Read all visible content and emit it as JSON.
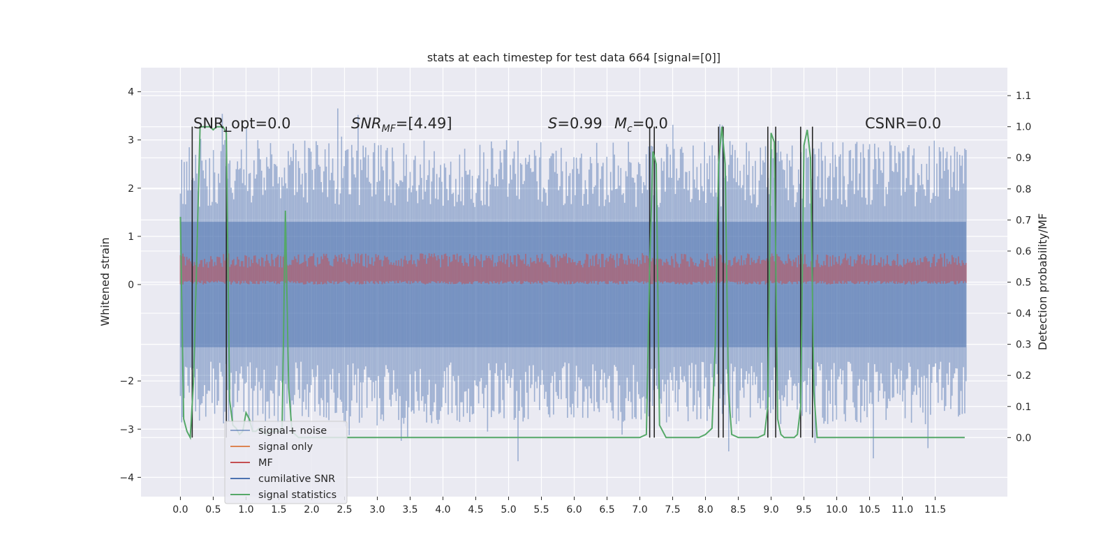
{
  "chart_data": {
    "type": "line",
    "title": "stats at each timestep for test data 664 [signal=[0]]",
    "xlabel": "",
    "ylabel": "Whitened strain",
    "ylabel_right": "Detection probability/MF",
    "xlim": [
      -0.6,
      12.6
    ],
    "ylim": [
      -4.4,
      4.5
    ],
    "ylim_right": [
      -0.19,
      1.19
    ],
    "x_ticks": [
      "0.0",
      "0.5",
      "1.0",
      "1.5",
      "2.0",
      "2.5",
      "3.0",
      "3.5",
      "4.0",
      "4.5",
      "5.0",
      "5.5",
      "6.0",
      "6.5",
      "7.0",
      "7.5",
      "8.0",
      "8.5",
      "9.0",
      "9.5",
      "10.0",
      "10.5",
      "11.0",
      "11.5"
    ],
    "y_ticks": [
      "4",
      "3",
      "2",
      "1",
      "0",
      "−2",
      "−3",
      "−4"
    ],
    "y_ticks_right": [
      "1.1",
      "1.0",
      "0.9",
      "0.8",
      "0.7",
      "0.6",
      "0.5",
      "0.4",
      "0.3",
      "0.2",
      "0.1",
      "0.0"
    ],
    "grid": true,
    "legend_position": "lower-left",
    "annotations": {
      "snr_opt": "SNR_opt=0.0",
      "snr_mf_main": "SNR",
      "snr_mf_sub": "MF",
      "snr_mf_value": "=[4.49]",
      "s_main": "S",
      "s_value": "=0.99",
      "mc_main": "M",
      "mc_sub": "c",
      "mc_value": "=0.0",
      "csnr": "CSNR=0.0"
    },
    "series": [
      {
        "name": "signal+ noise",
        "color": "#4c72b0",
        "style": "dense noise band, approx range -3.2 to 3.3 with spikes to 4.1 and -4.0",
        "range": [
          -3.2,
          3.3
        ]
      },
      {
        "name": "signal only",
        "color": "#dd8452",
        "values": []
      },
      {
        "name": "MF",
        "color": "#c44e52",
        "style": "dense band, approx range 0.0 to 0.6",
        "range": [
          0.0,
          0.6
        ]
      },
      {
        "name": "cumilative SNR",
        "color": "#4c72b0",
        "values": []
      },
      {
        "name": "signal statistics",
        "color": "#55a868",
        "axis": "right",
        "x": [
          0.0,
          0.05,
          0.1,
          0.15,
          0.2,
          0.25,
          0.3,
          0.35,
          0.4,
          0.45,
          0.5,
          0.55,
          0.6,
          0.65,
          0.7,
          0.75,
          0.8,
          0.85,
          0.9,
          0.95,
          1.0,
          1.05,
          1.1,
          1.15,
          1.2,
          1.25,
          1.3,
          1.35,
          1.4,
          1.45,
          1.5,
          1.55,
          1.6,
          1.65,
          1.7,
          1.75,
          1.8,
          2.0,
          3.0,
          4.0,
          5.0,
          6.0,
          7.0,
          7.1,
          7.15,
          7.2,
          7.25,
          7.3,
          7.4,
          7.5,
          7.6,
          7.7,
          7.8,
          7.9,
          8.0,
          8.1,
          8.15,
          8.2,
          8.25,
          8.3,
          8.35,
          8.4,
          8.5,
          8.7,
          8.8,
          8.9,
          8.95,
          9.0,
          9.05,
          9.1,
          9.15,
          9.2,
          9.3,
          9.35,
          9.4,
          9.45,
          9.5,
          9.55,
          9.6,
          9.65,
          9.7,
          10.0,
          10.5,
          10.6,
          11.0,
          11.5,
          11.8,
          11.95
        ],
        "y": [
          0.71,
          0.06,
          0.02,
          0.0,
          0.18,
          0.58,
          1.0,
          1.0,
          1.0,
          1.0,
          0.99,
          1.0,
          1.0,
          1.0,
          0.98,
          0.12,
          0.04,
          0.03,
          0.01,
          0.02,
          0.08,
          0.06,
          0.02,
          0.02,
          0.03,
          0.02,
          0.01,
          0.02,
          0.02,
          0.02,
          0.02,
          0.03,
          0.73,
          0.16,
          0.02,
          0.01,
          0.0,
          0.0,
          0.0,
          0.0,
          0.0,
          0.0,
          0.0,
          0.01,
          0.55,
          0.92,
          0.88,
          0.04,
          0.0,
          0.0,
          0.0,
          0.0,
          0.0,
          0.0,
          0.01,
          0.03,
          0.3,
          0.88,
          1.0,
          0.88,
          0.15,
          0.01,
          0.0,
          0.0,
          0.0,
          0.01,
          0.1,
          0.98,
          0.95,
          0.06,
          0.01,
          0.0,
          0.0,
          0.0,
          0.01,
          0.1,
          0.94,
          0.99,
          0.9,
          0.15,
          0.0,
          0.0,
          0.0,
          0.0,
          0.0,
          0.0,
          0.0,
          0.0
        ]
      }
    ],
    "vertical_lines_x": [
      0.18,
      0.7,
      7.15,
      7.22,
      8.2,
      8.27,
      8.95,
      9.07,
      9.45,
      9.63
    ],
    "vertical_line_color": "#262626"
  }
}
